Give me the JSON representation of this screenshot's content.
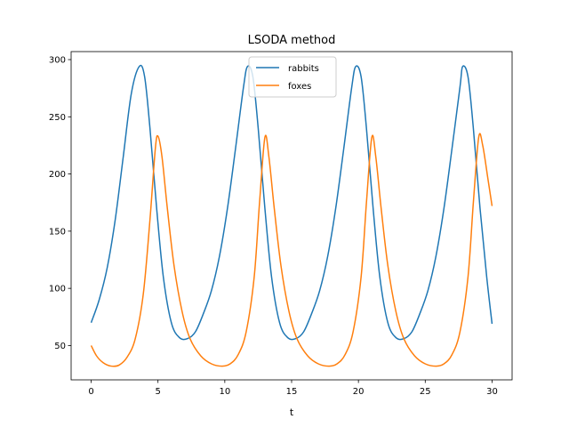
{
  "chart_data": {
    "type": "line",
    "title": "LSODA method",
    "xlabel": "t",
    "ylabel": "",
    "xlim": [
      -1.5,
      31.5
    ],
    "ylim": [
      20,
      307
    ],
    "xticks": [
      0,
      5,
      10,
      15,
      20,
      25,
      30
    ],
    "xtick_labels": [
      "0",
      "5",
      "10",
      "15",
      "20",
      "25",
      "30"
    ],
    "yticks": [
      50,
      100,
      150,
      200,
      250,
      300
    ],
    "ytick_labels": [
      "50",
      "100",
      "150",
      "200",
      "250",
      "300"
    ],
    "grid": false,
    "legend": {
      "position": "top-center"
    },
    "series": [
      {
        "name": "rabbits",
        "color": "#1f77b4",
        "points": [
          [
            0,
            70
          ],
          [
            0.6,
            90
          ],
          [
            1.2,
            118
          ],
          [
            1.8,
            160
          ],
          [
            2.4,
            215
          ],
          [
            3.0,
            270
          ],
          [
            3.6,
            294
          ],
          [
            4.0,
            285
          ],
          [
            4.4,
            240
          ],
          [
            4.9,
            170
          ],
          [
            5.4,
            110
          ],
          [
            6.0,
            70
          ],
          [
            6.6,
            57
          ],
          [
            7.2,
            56
          ],
          [
            7.8,
            62
          ],
          [
            8.4,
            78
          ],
          [
            9.0,
            98
          ],
          [
            9.6,
            128
          ],
          [
            10.2,
            170
          ],
          [
            10.8,
            222
          ],
          [
            11.4,
            276
          ],
          [
            11.7,
            294
          ],
          [
            12.1,
            285
          ],
          [
            12.5,
            240
          ],
          [
            13.0,
            170
          ],
          [
            13.5,
            110
          ],
          [
            14.1,
            70
          ],
          [
            14.7,
            57
          ],
          [
            15.3,
            56
          ],
          [
            15.9,
            62
          ],
          [
            16.5,
            78
          ],
          [
            17.1,
            98
          ],
          [
            17.7,
            128
          ],
          [
            18.3,
            170
          ],
          [
            18.9,
            222
          ],
          [
            19.5,
            276
          ],
          [
            19.8,
            294
          ],
          [
            20.2,
            285
          ],
          [
            20.6,
            240
          ],
          [
            21.1,
            170
          ],
          [
            21.6,
            110
          ],
          [
            22.2,
            70
          ],
          [
            22.8,
            57
          ],
          [
            23.4,
            56
          ],
          [
            24.0,
            62
          ],
          [
            24.6,
            78
          ],
          [
            25.2,
            98
          ],
          [
            25.8,
            128
          ],
          [
            26.4,
            170
          ],
          [
            27.0,
            222
          ],
          [
            27.6,
            276
          ],
          [
            27.8,
            294
          ],
          [
            28.2,
            285
          ],
          [
            28.6,
            240
          ],
          [
            29.1,
            170
          ],
          [
            29.6,
            110
          ],
          [
            30.0,
            69
          ]
        ]
      },
      {
        "name": "foxes",
        "color": "#ff7f0e",
        "points": [
          [
            0,
            50
          ],
          [
            0.4,
            41
          ],
          [
            0.9,
            35
          ],
          [
            1.5,
            32
          ],
          [
            2.1,
            33
          ],
          [
            2.7,
            40
          ],
          [
            3.3,
            56
          ],
          [
            3.9,
            95
          ],
          [
            4.4,
            160
          ],
          [
            4.8,
            222
          ],
          [
            5.0,
            233
          ],
          [
            5.3,
            215
          ],
          [
            5.7,
            170
          ],
          [
            6.2,
            120
          ],
          [
            6.8,
            80
          ],
          [
            7.4,
            56
          ],
          [
            8.2,
            41
          ],
          [
            9.0,
            34
          ],
          [
            9.8,
            32
          ],
          [
            10.4,
            34
          ],
          [
            11.0,
            42
          ],
          [
            11.6,
            62
          ],
          [
            12.2,
            110
          ],
          [
            12.6,
            175
          ],
          [
            13.0,
            232
          ],
          [
            13.3,
            215
          ],
          [
            13.7,
            170
          ],
          [
            14.2,
            120
          ],
          [
            14.8,
            80
          ],
          [
            15.4,
            56
          ],
          [
            16.2,
            41
          ],
          [
            17.0,
            34
          ],
          [
            17.8,
            32
          ],
          [
            18.4,
            34
          ],
          [
            19.0,
            42
          ],
          [
            19.6,
            62
          ],
          [
            20.2,
            110
          ],
          [
            20.6,
            175
          ],
          [
            21.0,
            232
          ],
          [
            21.3,
            215
          ],
          [
            21.7,
            170
          ],
          [
            22.2,
            120
          ],
          [
            22.8,
            80
          ],
          [
            23.4,
            56
          ],
          [
            24.2,
            41
          ],
          [
            25.0,
            34
          ],
          [
            25.8,
            32
          ],
          [
            26.4,
            34
          ],
          [
            27.0,
            42
          ],
          [
            27.6,
            62
          ],
          [
            28.2,
            110
          ],
          [
            28.6,
            175
          ],
          [
            29.0,
            232
          ],
          [
            29.3,
            225
          ],
          [
            29.7,
            195
          ],
          [
            30.0,
            172
          ]
        ]
      }
    ]
  }
}
